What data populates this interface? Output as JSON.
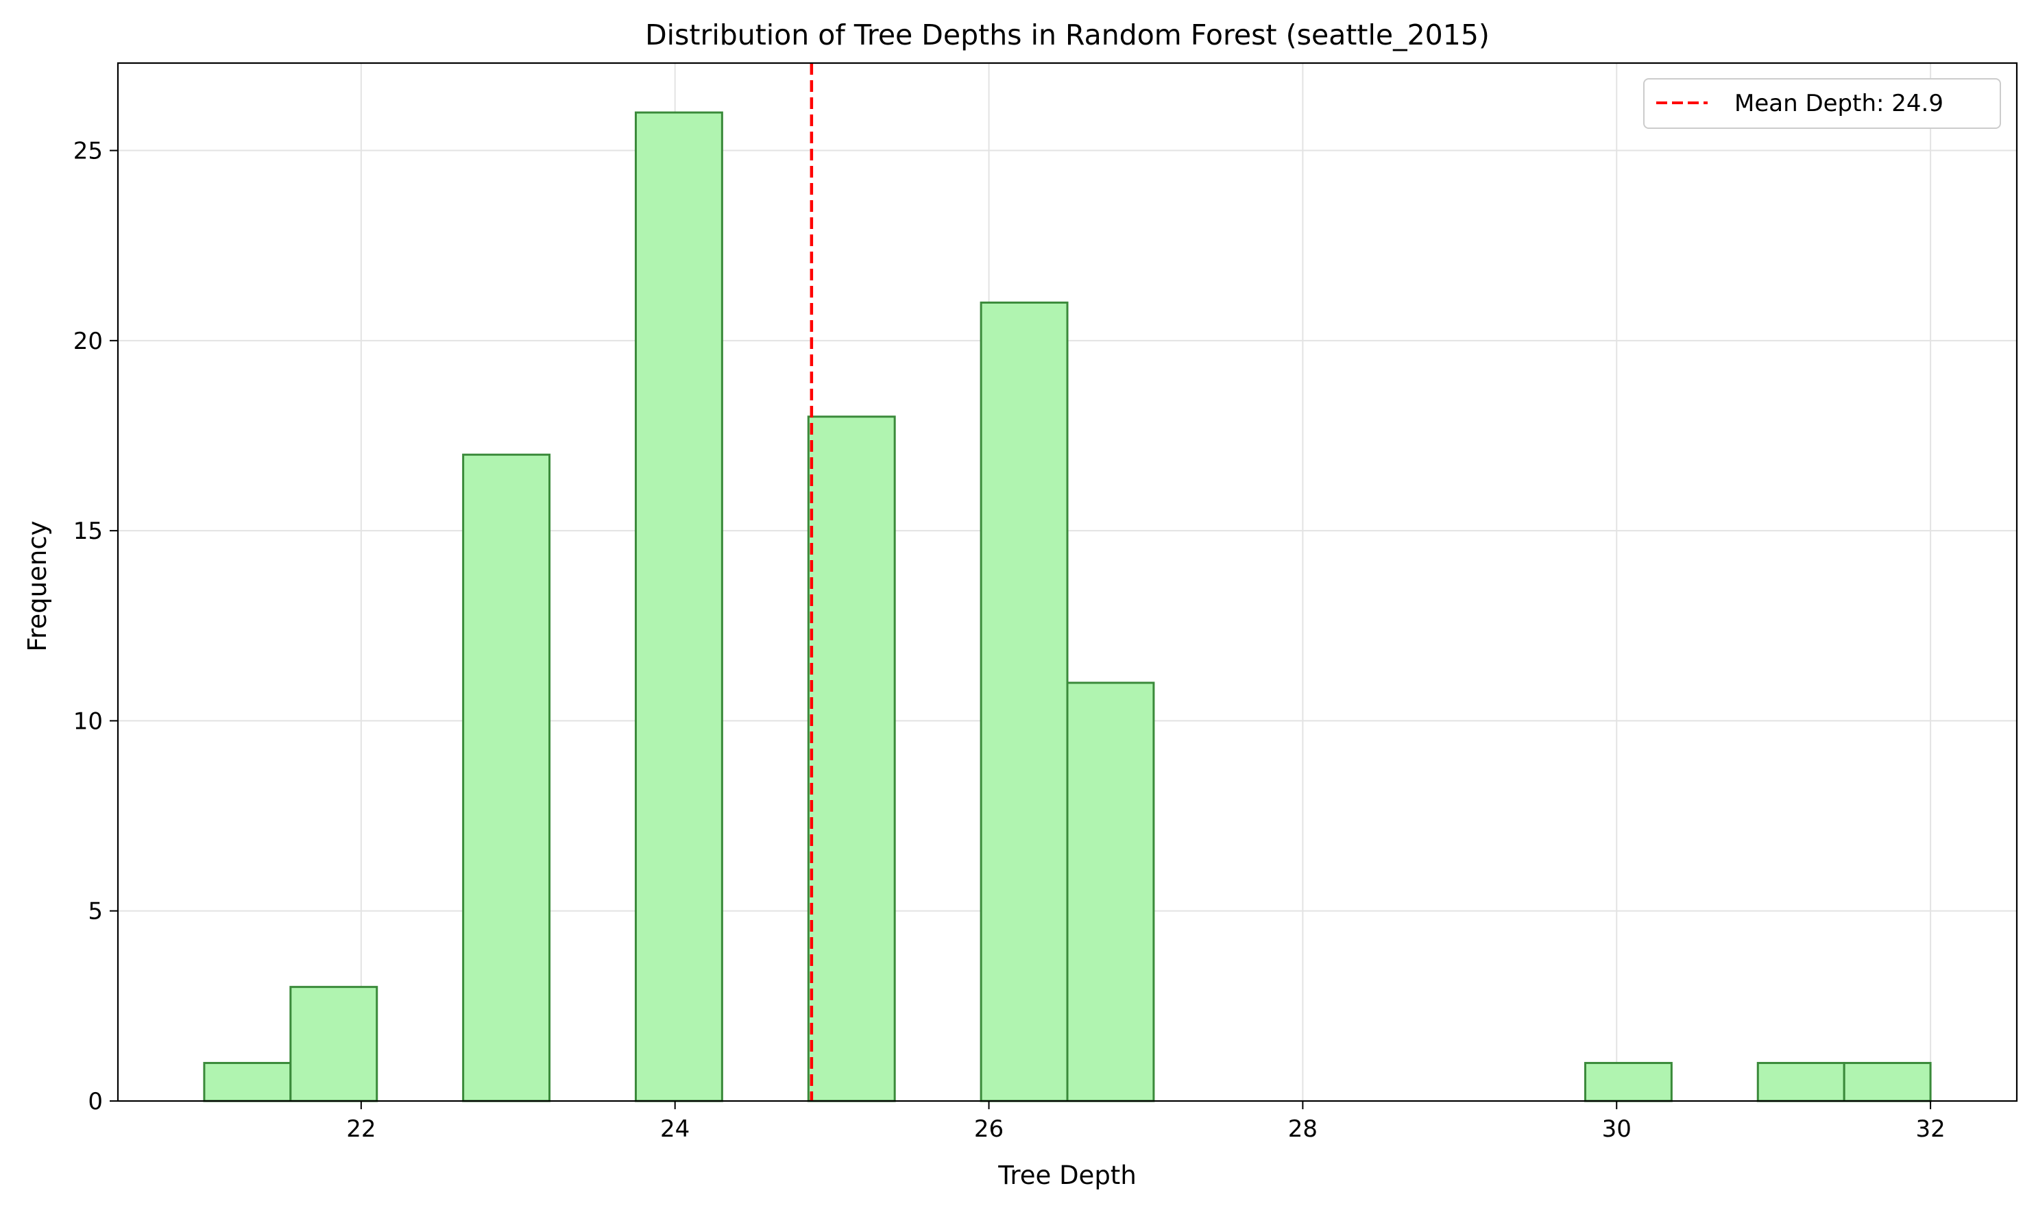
{
  "chart_data": {
    "type": "bar",
    "subtype": "histogram",
    "title": "Distribution of Tree Depths in Random Forest (seattle_2015)",
    "xlabel": "Tree Depth",
    "ylabel": "Frequency",
    "xlim": [
      20.45,
      32.55
    ],
    "ylim": [
      0,
      27.3
    ],
    "xticks": [
      22,
      24,
      26,
      28,
      30,
      32
    ],
    "yticks": [
      0,
      5,
      10,
      15,
      20,
      25
    ],
    "grid": true,
    "bin_edges": [
      21.0,
      21.55,
      22.1,
      22.65,
      23.2,
      23.75,
      24.3,
      24.85,
      25.4,
      25.95,
      26.5,
      27.05,
      27.6,
      28.15,
      28.7,
      29.25,
      29.8,
      30.35,
      30.9,
      31.45,
      32.0
    ],
    "counts": [
      1,
      3,
      0,
      17,
      0,
      26,
      0,
      18,
      0,
      21,
      11,
      0,
      0,
      0,
      0,
      0,
      1,
      0,
      1,
      1
    ],
    "bar_fill": "#b0f4b0",
    "bar_edge": "#3a8a3a",
    "mean_line": {
      "value": 24.87,
      "label": "Mean Depth: 24.9",
      "color": "#ff0000",
      "style": "dashed"
    },
    "legend_position": "top-right"
  }
}
